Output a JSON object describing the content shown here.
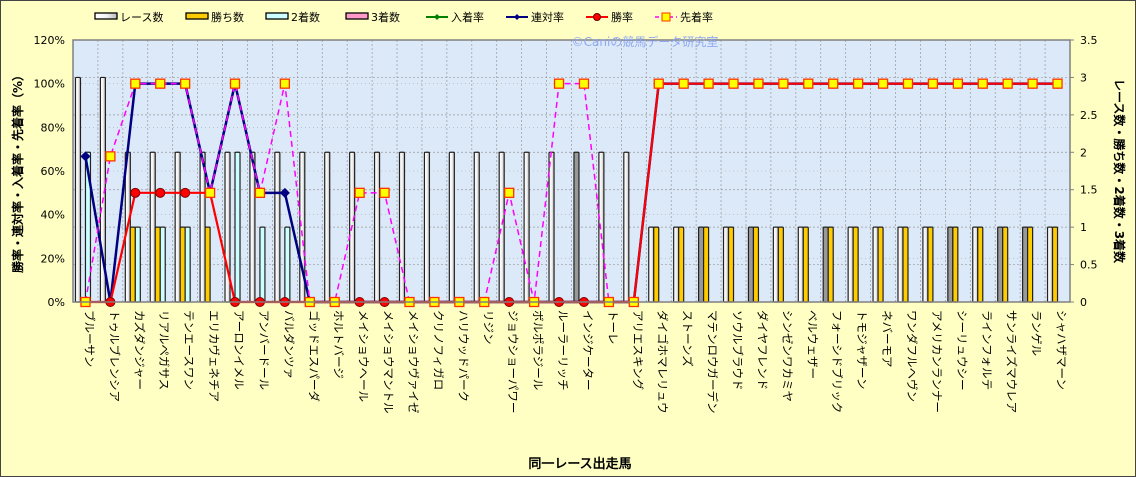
{
  "chart_data": {
    "type": "bar+line",
    "watermark": "©Caniの競馬データ研究室",
    "xlabel": "同一レース出走馬",
    "ylabel_left": "勝率・連対率・入着率・先着率（%）",
    "ylabel_right": "レース数・勝ち数・2着数・3着数",
    "ylim_left": [
      0,
      120
    ],
    "ylim_right": [
      0,
      3.5
    ],
    "yticks_left": [
      "0%",
      "20%",
      "40%",
      "60%",
      "80%",
      "100%",
      "120%"
    ],
    "yticks_right": [
      "0",
      "0.5",
      "1",
      "1.5",
      "2",
      "2.5",
      "3",
      "3.5"
    ],
    "grid": true,
    "legend_position": "top",
    "legend": [
      {
        "label": "レース数",
        "kind": "bar",
        "color": "#FFFFFF"
      },
      {
        "label": "勝ち数",
        "kind": "bar",
        "color": "#FFCC00"
      },
      {
        "label": "2着数",
        "kind": "bar",
        "color": "#CCFFFF"
      },
      {
        "label": "3着数",
        "kind": "bar",
        "color": "#FF99CC"
      },
      {
        "label": "入着率",
        "kind": "line",
        "color": "#008000"
      },
      {
        "label": "連対率",
        "kind": "line",
        "color": "#000080"
      },
      {
        "label": "勝率",
        "kind": "line",
        "color": "#FF0000"
      },
      {
        "label": "先着率",
        "kind": "line",
        "color": "#FF00FF"
      }
    ],
    "categories": [
      "ブルーサン",
      "トゥルブレンシア",
      "カズダンジャー",
      "リアルペガサス",
      "テンエースワン",
      "エリカヴェネチア",
      "アーロンイメル",
      "アンバードール",
      "バルダンツァ",
      "ゴッドエスパーダ",
      "ホルトバージ",
      "メイショウヘール",
      "メイショウマントル",
      "メイショウヴァイゼ",
      "クリノフィガロ",
      "ハリウッドパーク",
      "リジン",
      "ジョウショーパワー",
      "ボルポラジール",
      "ルーラーリッチ",
      "インジケーター",
      "トーレ",
      "アリエスキング",
      "ダイゴホマレリュウ",
      "ストーンズ",
      "マテンロウガーデン",
      "ソウルブラウド",
      "ダイヤフレンド",
      "シンゼンワカミヤ",
      "ベルウェザー",
      "フォーシドブリック",
      "トモジャザーン",
      "ネバーモア",
      "ワンダフルヘヴン",
      "アメリカンランナー",
      "シーリュウシー",
      "ラインフォルテ",
      "サンライズマウレア",
      "ランゲル",
      "シャハザマーン"
    ],
    "series": [
      {
        "name": "レース数",
        "axis": "right",
        "values": [
          3,
          3,
          2,
          2,
          2,
          2,
          2,
          2,
          2,
          2,
          2,
          2,
          2,
          2,
          2,
          2,
          2,
          2,
          2,
          2,
          2,
          2,
          2,
          1,
          1,
          1,
          1,
          1,
          1,
          1,
          1,
          1,
          1,
          1,
          1,
          1,
          1,
          1,
          1,
          1
        ]
      },
      {
        "name": "勝ち数",
        "axis": "right",
        "values": [
          0,
          0,
          1,
          1,
          1,
          1,
          0,
          0,
          0,
          0,
          0,
          0,
          0,
          0,
          0,
          0,
          0,
          0,
          0,
          0,
          0,
          0,
          0,
          1,
          1,
          1,
          1,
          1,
          1,
          1,
          1,
          1,
          1,
          1,
          1,
          1,
          1,
          1,
          1,
          1
        ]
      },
      {
        "name": "2着数",
        "axis": "right",
        "values": [
          2,
          0,
          1,
          1,
          1,
          0,
          2,
          1,
          1,
          0,
          0,
          0,
          0,
          0,
          0,
          0,
          0,
          0,
          0,
          0,
          0,
          0,
          0,
          0,
          0,
          0,
          0,
          0,
          0,
          0,
          0,
          0,
          0,
          0,
          0,
          0,
          0,
          0,
          0,
          0
        ]
      },
      {
        "name": "3着数",
        "axis": "right",
        "values": [
          0,
          0,
          0,
          0,
          0,
          0,
          0,
          0,
          0,
          0,
          0,
          0,
          0,
          0,
          0,
          0,
          0,
          0,
          0,
          0,
          0,
          0,
          0,
          0,
          0,
          0,
          0,
          0,
          0,
          0,
          0,
          0,
          0,
          0,
          0,
          0,
          0,
          0,
          0,
          0
        ]
      },
      {
        "name": "連対率",
        "axis": "left",
        "values": [
          66.7,
          0,
          100,
          100,
          100,
          50,
          100,
          50,
          50,
          0,
          0,
          0,
          0,
          0,
          0,
          0,
          0,
          0,
          0,
          0,
          0,
          0,
          0,
          100,
          100,
          100,
          100,
          100,
          100,
          100,
          100,
          100,
          100,
          100,
          100,
          100,
          100,
          100,
          100,
          100
        ]
      },
      {
        "name": "勝率",
        "axis": "left",
        "values": [
          0,
          0,
          50,
          50,
          50,
          50,
          0,
          0,
          0,
          0,
          0,
          0,
          0,
          0,
          0,
          0,
          0,
          0,
          0,
          0,
          0,
          0,
          0,
          100,
          100,
          100,
          100,
          100,
          100,
          100,
          100,
          100,
          100,
          100,
          100,
          100,
          100,
          100,
          100,
          100
        ]
      },
      {
        "name": "先着率",
        "axis": "left",
        "values": [
          0,
          66.7,
          100,
          100,
          100,
          50,
          100,
          50,
          100,
          0,
          0,
          50,
          50,
          0,
          0,
          0,
          0,
          50,
          0,
          100,
          100,
          0,
          0,
          100,
          100,
          100,
          100,
          100,
          100,
          100,
          100,
          100,
          100,
          100,
          100,
          100,
          100,
          100,
          100,
          100
        ]
      }
    ],
    "race_bar_shaded": [
      false,
      false,
      false,
      false,
      false,
      false,
      false,
      false,
      false,
      false,
      false,
      false,
      false,
      false,
      false,
      false,
      false,
      false,
      false,
      false,
      true,
      false,
      false,
      false,
      false,
      true,
      false,
      true,
      false,
      false,
      true,
      false,
      false,
      false,
      false,
      true,
      false,
      true,
      true,
      false
    ]
  }
}
